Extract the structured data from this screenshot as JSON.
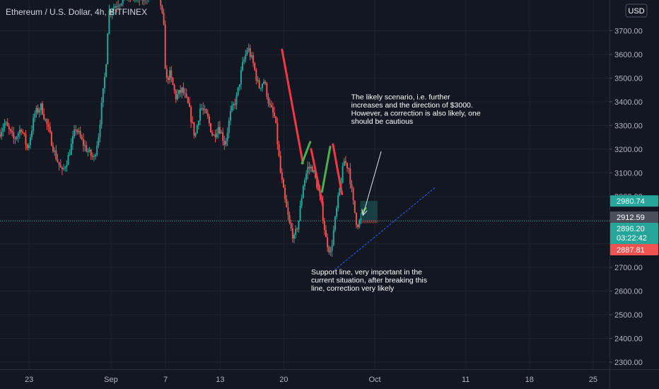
{
  "chart_data": {
    "type": "candlestick",
    "title": "Ethereum / U.S. Dollar, 4h, BITFINEX",
    "currency_badge": "USD",
    "y_ticks": [
      2300,
      2400,
      2500,
      2600,
      2700,
      2800,
      2900,
      3000,
      3100,
      3200,
      3300,
      3400,
      3500,
      3600,
      3700
    ],
    "y_tick_labels": [
      "2300.00",
      "2400.00",
      "2500.00",
      "2600.00",
      "2700.00",
      "2800.00",
      "2900.00",
      "3000.00",
      "3100.00",
      "3200.00",
      "3300.00",
      "3400.00",
      "3500.00",
      "3600.00",
      "3700.00"
    ],
    "ylim": [
      2270,
      3830
    ],
    "x_ticks": [
      {
        "label": "23",
        "day": 23
      },
      {
        "label": "Sep",
        "day": 32
      },
      {
        "label": "7",
        "day": 38
      },
      {
        "label": "13",
        "day": 44
      },
      {
        "label": "20",
        "day": 51
      },
      {
        "label": "Oct",
        "day": 61
      },
      {
        "label": "11",
        "day": 71
      },
      {
        "label": "18",
        "day": 78
      },
      {
        "label": "25",
        "day": 85
      }
    ],
    "xlim": [
      19.8,
      86.8
    ],
    "price_tags": [
      {
        "label": "2980.74",
        "value": 2980.74,
        "color": "#26a69a"
      },
      {
        "label": "2912.59",
        "value": 2912.59,
        "color": "#4b4f5a"
      },
      {
        "label": "2896.20",
        "value": 2896.2,
        "color": "#26a69a",
        "sub": "03:22:42"
      },
      {
        "label": "2887.81",
        "value": 2887.81,
        "color": "#ef5350"
      }
    ],
    "current_price": 2896.2,
    "path": [
      [
        19.8,
        3260
      ],
      [
        20.5,
        3310
      ],
      [
        21.5,
        3240
      ],
      [
        22.3,
        3290
      ],
      [
        23.0,
        3200
      ],
      [
        23.8,
        3350
      ],
      [
        24.5,
        3380
      ],
      [
        25.3,
        3280
      ],
      [
        26.0,
        3180
      ],
      [
        26.8,
        3100
      ],
      [
        27.5,
        3170
      ],
      [
        28.3,
        3290
      ],
      [
        29.0,
        3230
      ],
      [
        29.8,
        3180
      ],
      [
        30.3,
        3160
      ],
      [
        30.8,
        3260
      ],
      [
        31.3,
        3440
      ],
      [
        31.6,
        3550
      ],
      [
        31.9,
        3780
      ],
      [
        33.0,
        3820
      ],
      [
        34.2,
        3850
      ],
      [
        35.5,
        3830
      ],
      [
        36.5,
        3860
      ],
      [
        37.5,
        3850
      ],
      [
        38.0,
        3700
      ],
      [
        38.2,
        3480
      ],
      [
        38.6,
        3520
      ],
      [
        39.3,
        3420
      ],
      [
        40.0,
        3450
      ],
      [
        40.7,
        3380
      ],
      [
        41.4,
        3250
      ],
      [
        42.0,
        3380
      ],
      [
        42.8,
        3330
      ],
      [
        43.4,
        3250
      ],
      [
        44.0,
        3300
      ],
      [
        44.7,
        3220
      ],
      [
        45.3,
        3350
      ],
      [
        46.0,
        3420
      ],
      [
        46.6,
        3550
      ],
      [
        47.2,
        3630
      ],
      [
        47.8,
        3560
      ],
      [
        48.4,
        3460
      ],
      [
        49.0,
        3490
      ],
      [
        49.6,
        3380
      ],
      [
        50.2,
        3330
      ],
      [
        50.8,
        3100
      ],
      [
        51.3,
        2980
      ],
      [
        51.8,
        2880
      ],
      [
        52.3,
        2820
      ],
      [
        52.8,
        2900
      ],
      [
        53.3,
        3050
      ],
      [
        53.8,
        3120
      ],
      [
        54.3,
        3120
      ],
      [
        54.8,
        3050
      ],
      [
        55.3,
        2960
      ],
      [
        55.8,
        2820
      ],
      [
        56.3,
        2760
      ],
      [
        56.8,
        2900
      ],
      [
        57.3,
        3030
      ],
      [
        57.8,
        3150
      ],
      [
        58.3,
        3120
      ],
      [
        58.8,
        2970
      ],
      [
        59.2,
        2880
      ],
      [
        59.6,
        2900
      ]
    ],
    "overlays": {
      "support_line": {
        "from": [
          56.6,
          2690
        ],
        "to": [
          67.7,
          3040
        ],
        "color": "#2962ff"
      },
      "price_line": {
        "value": 2896.2,
        "color": "#26a69a"
      },
      "red_lines": [
        [
          [
            50.8,
            3620
          ],
          [
            53.1,
            3140
          ]
        ],
        [
          [
            54.0,
            3200
          ],
          [
            55.3,
            2960
          ]
        ],
        [
          [
            56.4,
            3220
          ],
          [
            57.4,
            3010
          ]
        ]
      ],
      "green_lines": [
        [
          [
            53.0,
            3140
          ],
          [
            53.9,
            3230
          ]
        ],
        [
          [
            55.2,
            3020
          ],
          [
            56.1,
            3210
          ]
        ],
        [
          [
            59.6,
            2930
          ],
          [
            60.0,
            2950
          ]
        ]
      ],
      "target_box": {
        "x0": 59.4,
        "x1": 61.3,
        "y0": 2900,
        "y1": 2981,
        "fill": "rgba(38,166,154,0.28)"
      },
      "stop_box": {
        "x0": 59.4,
        "x1": 61.3,
        "y0": 2887,
        "y1": 2900,
        "fill": "rgba(239,83,80,0.35)"
      }
    },
    "annotations": [
      {
        "lines": [
          "The likely scenario, i.e. further",
          "increases and the direction of $3000.",
          "However, a correction is also likely, one",
          "should be cautious"
        ],
        "day": 58.4,
        "value": 3410
      },
      {
        "lines": [
          "Support line, very important in the",
          "current situation, after breaking this",
          "line, correction very likely"
        ],
        "day": 54.0,
        "value": 2670
      }
    ],
    "arrow": {
      "from": [
        61.7,
        3190
      ],
      "to": [
        59.7,
        2920
      ]
    },
    "colors": {
      "up": "#26a69a",
      "down": "#ef5350",
      "background": "#131722",
      "axis_text": "#b2b5be",
      "grid": "#1e222d"
    },
    "grid": true,
    "legend": "none"
  }
}
